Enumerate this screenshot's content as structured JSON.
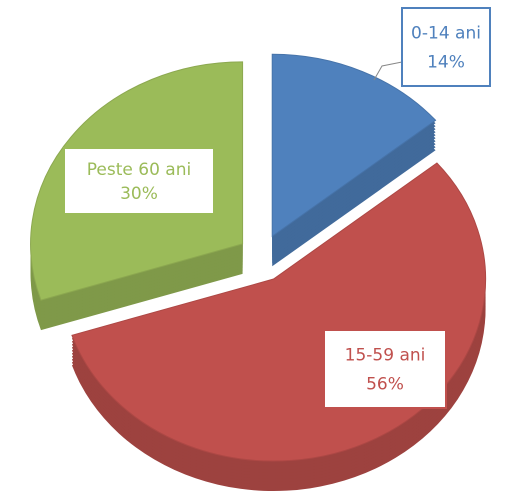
{
  "chart_data": {
    "type": "pie",
    "categories": [
      "0-14 ani",
      "15-59 ani",
      "Peste 60 ani"
    ],
    "values": [
      14,
      56,
      30
    ],
    "value_labels": [
      "14%",
      "56%",
      "30%"
    ],
    "colors": [
      "#4f81bd",
      "#c0504d",
      "#9bbb59"
    ]
  }
}
